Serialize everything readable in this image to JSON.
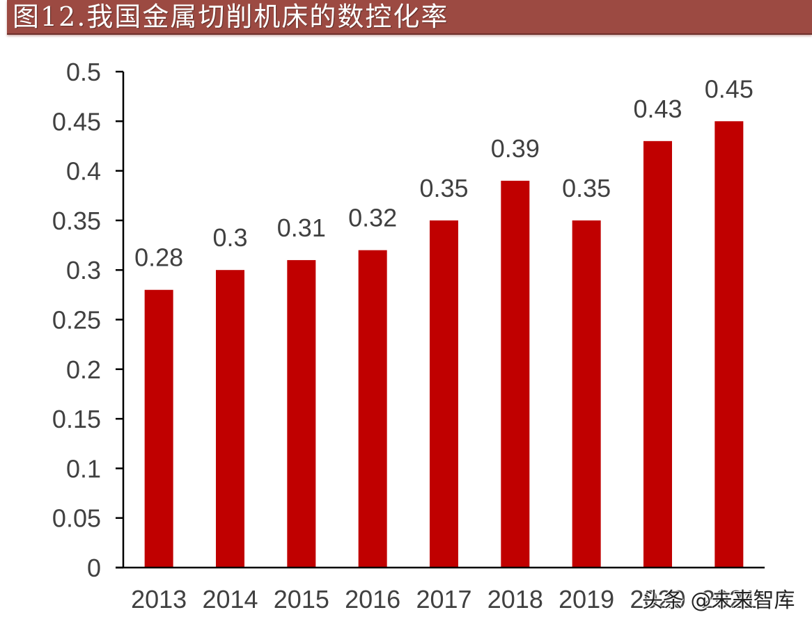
{
  "title": "图12.我国金属切削机床的数控化率",
  "watermark": "头条 @未来智库",
  "colors": {
    "title_bg": "#9C4A42",
    "bar": "#C00000",
    "axis": "#000000",
    "text": "#404040"
  },
  "chart_data": {
    "type": "bar",
    "title": "图12.我国金属切削机床的数控化率",
    "xlabel": "",
    "ylabel": "",
    "categories": [
      "2013",
      "2014",
      "2015",
      "2016",
      "2017",
      "2018",
      "2019",
      "2020",
      "2021"
    ],
    "values": [
      0.28,
      0.3,
      0.31,
      0.32,
      0.35,
      0.39,
      0.35,
      0.43,
      0.45
    ],
    "data_labels": [
      "0.28",
      "0.3",
      "0.31",
      "0.32",
      "0.35",
      "0.39",
      "0.35",
      "0.43",
      "0.45"
    ],
    "ylim": [
      0,
      0.5
    ],
    "yticks": [
      "0",
      "0.05",
      "0.1",
      "0.15",
      "0.2",
      "0.25",
      "0.3",
      "0.35",
      "0.4",
      "0.45",
      "0.5"
    ],
    "grid": false,
    "legend": null
  }
}
